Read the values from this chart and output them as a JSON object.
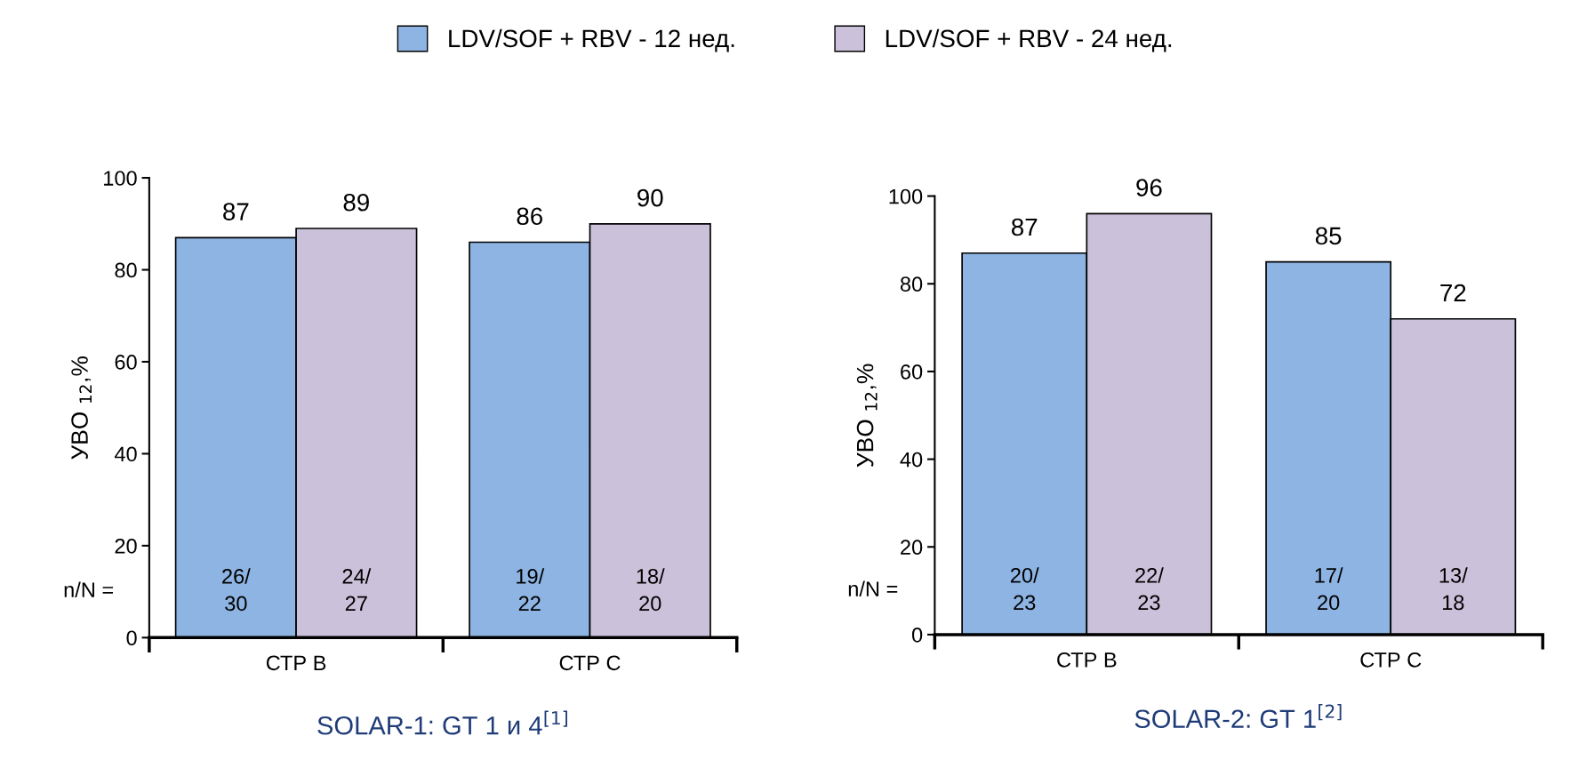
{
  "chart_data": [
    {
      "type": "bar",
      "title": "SOLAR-1: GT 1 и 4$^{[1]}$",
      "ylabel": "УВО $_{12}$,%",
      "categories": [
        "СТР B",
        "СТР C"
      ],
      "series": [
        {
          "name": "LDV/SOF + RBV - 12 нед.",
          "color": "#8eb4e3",
          "values": [
            87,
            86
          ]
        },
        {
          "name": "LDV/SOF + RBV - 24 нед.",
          "color": "#ccc1da",
          "values": [
            89,
            90
          ]
        }
      ],
      "ylim": [
        0,
        100
      ],
      "yticks": [
        0,
        20,
        40,
        60,
        80,
        100
      ],
      "data_labels": true,
      "legend": "top",
      "annotations": [
        "n/N =",
        "26/\n30",
        "24/\n27",
        "19/\n22",
        "18/\n20"
      ]
    },
    {
      "type": "bar",
      "title": "SOLAR-2: GT 1$^{[2]}$",
      "ylabel": "УВО $_{12}$,%",
      "categories": [
        "СТР B",
        "СТР C"
      ],
      "series": [
        {
          "color": "#8eb4e3",
          "values": [
            87,
            85
          ]
        },
        {
          "color": "#ccc1da",
          "values": [
            96,
            72
          ]
        }
      ],
      "ylim": [
        0,
        100
      ],
      "yticks": [
        0,
        20,
        40,
        60,
        80,
        100
      ],
      "data_labels": true,
      "annotations": [
        "n/N =",
        "20/\n23",
        "22/\n23",
        "17/\n20",
        "13/\n18"
      ]
    }
  ]
}
